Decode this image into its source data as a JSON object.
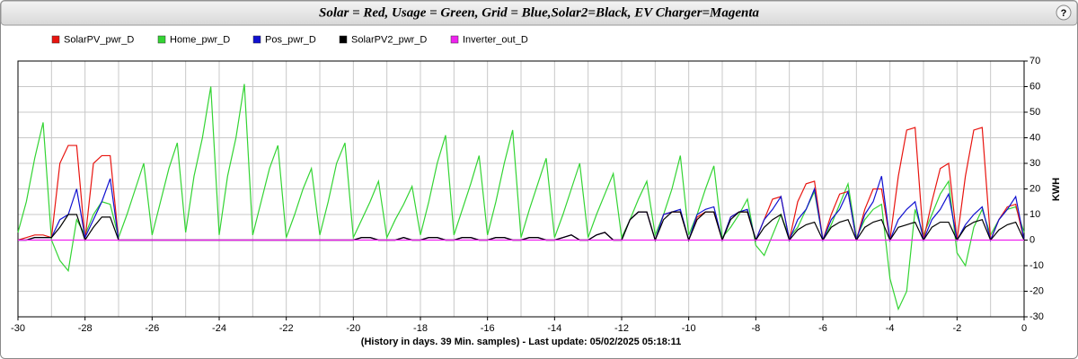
{
  "chart_data": {
    "type": "line",
    "title": "Solar = Red,  Usage = Green, Grid = Blue,Solar2=Black, EV Charger=Magenta",
    "help_button": "?",
    "xlabel": "(History in days. 39 Min. samples) - Last update: 05/02/2025 05:18:11",
    "ylabel": "KWH",
    "x": [
      -30,
      -29.75,
      -29.5,
      -29.25,
      -29,
      -28.75,
      -28.5,
      -28.25,
      -28,
      -27.75,
      -27.5,
      -27.25,
      -27,
      -26.75,
      -26.5,
      -26.25,
      -26,
      -25.75,
      -25.5,
      -25.25,
      -25,
      -24.75,
      -24.5,
      -24.25,
      -24,
      -23.75,
      -23.5,
      -23.25,
      -23,
      -22.75,
      -22.5,
      -22.25,
      -22,
      -21.75,
      -21.5,
      -21.25,
      -21,
      -20.75,
      -20.5,
      -20.25,
      -20,
      -19.75,
      -19.5,
      -19.25,
      -19,
      -18.75,
      -18.5,
      -18.25,
      -18,
      -17.75,
      -17.5,
      -17.25,
      -17,
      -16.75,
      -16.5,
      -16.25,
      -16,
      -15.75,
      -15.5,
      -15.25,
      -15,
      -14.75,
      -14.5,
      -14.25,
      -14,
      -13.75,
      -13.5,
      -13.25,
      -13,
      -12.75,
      -12.5,
      -12.25,
      -12,
      -11.75,
      -11.5,
      -11.25,
      -11,
      -10.75,
      -10.5,
      -10.25,
      -10,
      -9.75,
      -9.5,
      -9.25,
      -9,
      -8.75,
      -8.5,
      -8.25,
      -8,
      -7.75,
      -7.5,
      -7.25,
      -7,
      -6.75,
      -6.5,
      -6.25,
      -6,
      -5.75,
      -5.5,
      -5.25,
      -5,
      -4.75,
      -4.5,
      -4.25,
      -4,
      -3.75,
      -3.5,
      -3.25,
      -3,
      -2.75,
      -2.5,
      -2.25,
      -2,
      -1.75,
      -1.5,
      -1.25,
      -1,
      -0.75,
      -0.5,
      -0.25,
      0
    ],
    "series": [
      {
        "name": "SolarPV_pwr_D",
        "color": "#e8140f",
        "values": [
          0,
          1,
          2,
          2,
          1,
          30,
          37,
          37,
          0,
          30,
          33,
          33,
          0,
          0,
          0,
          0,
          0,
          0,
          0,
          0,
          0,
          0,
          0,
          0,
          0,
          0,
          0,
          0,
          0,
          0,
          0,
          0,
          0,
          0,
          0,
          0,
          0,
          0,
          0,
          0,
          0,
          1,
          1,
          0,
          0,
          0,
          1,
          0,
          0,
          1,
          1,
          0,
          0,
          1,
          1,
          0,
          0,
          1,
          1,
          0,
          0,
          1,
          1,
          0,
          0,
          1,
          2,
          0,
          0,
          2,
          3,
          0,
          0,
          8,
          11,
          11,
          0,
          10,
          11,
          11,
          0,
          9,
          11,
          11,
          0,
          9,
          11,
          11,
          0,
          8,
          16,
          17,
          0,
          15,
          22,
          23,
          0,
          10,
          18,
          19,
          0,
          12,
          20,
          20,
          0,
          25,
          43,
          44,
          0,
          15,
          28,
          30,
          0,
          25,
          43,
          44,
          0,
          8,
          13,
          14,
          0
        ]
      },
      {
        "name": "Home_pwr_D",
        "color": "#33d433",
        "values": [
          3,
          15,
          32,
          46,
          0,
          -8,
          -12,
          8,
          2,
          10,
          15,
          14,
          1,
          10,
          20,
          30,
          2,
          15,
          28,
          38,
          3,
          25,
          40,
          60,
          2,
          25,
          40,
          61,
          2,
          15,
          28,
          37,
          1,
          10,
          20,
          28,
          2,
          15,
          30,
          38,
          1,
          8,
          15,
          23,
          1,
          8,
          14,
          21,
          2,
          15,
          30,
          41,
          2,
          12,
          22,
          33,
          2,
          15,
          30,
          43,
          1,
          12,
          22,
          32,
          1,
          10,
          20,
          30,
          1,
          10,
          18,
          26,
          1,
          8,
          16,
          23,
          2,
          10,
          20,
          33,
          2,
          10,
          20,
          29,
          1,
          5,
          10,
          16,
          -2,
          -6,
          2,
          10,
          1,
          5,
          12,
          19,
          0,
          6,
          14,
          22,
          1,
          8,
          12,
          14,
          -15,
          -27,
          -20,
          12,
          2,
          10,
          18,
          23,
          -5,
          -10,
          5,
          12,
          2,
          8,
          12,
          13,
          3
        ]
      },
      {
        "name": "Pos_pwr_D",
        "color": "#1010d0",
        "values": [
          0,
          0,
          1,
          1,
          1,
          8,
          10,
          20,
          1,
          8,
          15,
          24,
          0,
          0,
          0,
          0,
          0,
          0,
          0,
          0,
          0,
          0,
          0,
          0,
          0,
          0,
          0,
          0,
          0,
          0,
          0,
          0,
          0,
          0,
          0,
          0,
          0,
          0,
          0,
          0,
          0,
          1,
          1,
          0,
          0,
          0,
          1,
          0,
          0,
          1,
          1,
          0,
          0,
          1,
          1,
          0,
          0,
          1,
          1,
          0,
          0,
          1,
          1,
          0,
          0,
          1,
          2,
          0,
          0,
          2,
          3,
          0,
          0,
          8,
          11,
          11,
          0,
          10,
          11,
          12,
          0,
          10,
          12,
          13,
          0,
          9,
          11,
          12,
          0,
          8,
          12,
          17,
          0,
          8,
          12,
          20,
          0,
          8,
          12,
          19,
          0,
          10,
          15,
          25,
          0,
          8,
          12,
          15,
          0,
          8,
          12,
          18,
          0,
          6,
          10,
          13,
          0,
          8,
          12,
          17,
          0
        ]
      },
      {
        "name": "SolarPV2_pwr_D",
        "color": "#000000",
        "values": [
          0,
          0,
          1,
          1,
          1,
          5,
          10,
          10,
          0,
          5,
          9,
          9,
          0,
          0,
          0,
          0,
          0,
          0,
          0,
          0,
          0,
          0,
          0,
          0,
          0,
          0,
          0,
          0,
          0,
          0,
          0,
          0,
          0,
          0,
          0,
          0,
          0,
          0,
          0,
          0,
          0,
          1,
          1,
          0,
          0,
          0,
          1,
          0,
          0,
          1,
          1,
          0,
          0,
          1,
          1,
          0,
          0,
          1,
          1,
          0,
          0,
          1,
          1,
          0,
          0,
          1,
          2,
          0,
          0,
          2,
          3,
          0,
          0,
          8,
          11,
          11,
          0,
          8,
          11,
          11,
          0,
          8,
          11,
          11,
          0,
          8,
          11,
          11,
          0,
          5,
          8,
          10,
          0,
          4,
          6,
          7,
          0,
          5,
          7,
          8,
          0,
          5,
          7,
          8,
          0,
          5,
          6,
          7,
          0,
          5,
          7,
          7,
          0,
          5,
          7,
          8,
          0,
          4,
          6,
          7,
          0
        ]
      },
      {
        "name": "Inverter_out_D",
        "color": "#ee22ee",
        "values": [
          0,
          0,
          0,
          0,
          0,
          0,
          0,
          0,
          0,
          0,
          0,
          0,
          0,
          0,
          0,
          0,
          0,
          0,
          0,
          0,
          0,
          0,
          0,
          0,
          0,
          0,
          0,
          0,
          0,
          0,
          0,
          0,
          0,
          0,
          0,
          0,
          0,
          0,
          0,
          0,
          0,
          0,
          0,
          0,
          0,
          0,
          0,
          0,
          0,
          0,
          0,
          0,
          0,
          0,
          0,
          0,
          0,
          0,
          0,
          0,
          0,
          0,
          0,
          0,
          0,
          0,
          0,
          0,
          0,
          0,
          0,
          0,
          0,
          0,
          0,
          0,
          0,
          0,
          0,
          0,
          0,
          0,
          0,
          0,
          0,
          0,
          0,
          0,
          0,
          0,
          0,
          0,
          0,
          0,
          0,
          0,
          0,
          0,
          0,
          0,
          0,
          0,
          0,
          0,
          0,
          0,
          0,
          0,
          0,
          0,
          0,
          0,
          0,
          0,
          0,
          0,
          0,
          0,
          0,
          0,
          0
        ]
      }
    ],
    "xlim": [
      -30,
      0
    ],
    "xticks": [
      -30,
      -28,
      -26,
      -24,
      -22,
      -20,
      -18,
      -16,
      -14,
      -12,
      -10,
      -8,
      -6,
      -4,
      -2,
      0
    ],
    "ylim": [
      -30,
      70
    ],
    "yticks": [
      -30,
      -20,
      -10,
      0,
      10,
      20,
      30,
      40,
      50,
      60,
      70
    ],
    "grid": true
  }
}
